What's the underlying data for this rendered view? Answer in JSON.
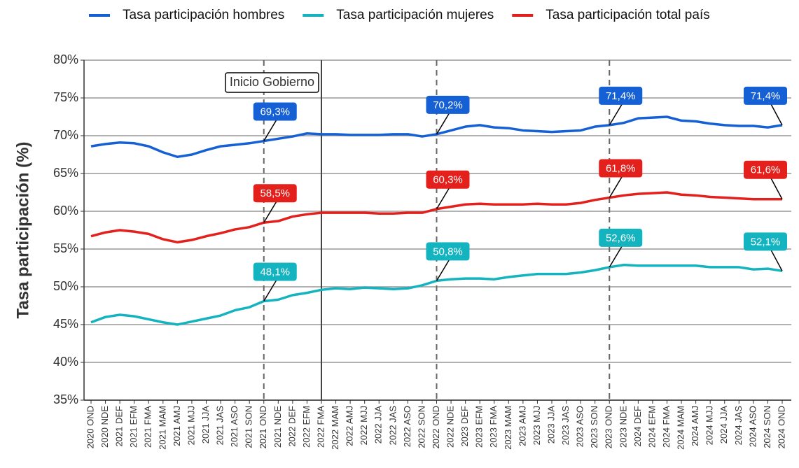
{
  "chart_data": {
    "type": "line",
    "ylabel": "Tasa participación (%)",
    "categories": [
      "2020 OND",
      "2020 NDE",
      "2021 DEF",
      "2021 EFM",
      "2021 FMA",
      "2021 MAM",
      "2021 AMJ",
      "2021 MJJ",
      "2021 JJA",
      "2021 JAS",
      "2021 ASO",
      "2021 SON",
      "2021 OND",
      "2021 NDE",
      "2022 DEF",
      "2022 EFM",
      "2022 FMA",
      "2022 MAM",
      "2022 AMJ",
      "2022 MJJ",
      "2022 JJA",
      "2022 JAS",
      "2022 ASO",
      "2022 SON",
      "2022 OND",
      "2022 NDE",
      "2023 DEF",
      "2023 EFM",
      "2023 FMA",
      "2023 MAM",
      "2023 AMJ",
      "2023 MJJ",
      "2023 JJA",
      "2023 JAS",
      "2023 ASO",
      "2023 SON",
      "2023 OND",
      "2023 NDE",
      "2024 DEF",
      "2024 EFM",
      "2024 FMA",
      "2024 MAM",
      "2024 AMJ",
      "2024 MJJ",
      "2024 JJA",
      "2024 JAS",
      "2024 ASO",
      "2024 SON",
      "2024 OND"
    ],
    "series": [
      {
        "name": "Tasa participación hombres",
        "color": "#1560d4",
        "values": [
          68.6,
          68.9,
          69.1,
          69.0,
          68.6,
          67.8,
          67.2,
          67.5,
          68.1,
          68.6,
          68.8,
          69.0,
          69.3,
          69.6,
          69.9,
          70.3,
          70.2,
          70.2,
          70.1,
          70.1,
          70.1,
          70.2,
          70.2,
          69.9,
          70.2,
          70.7,
          71.2,
          71.4,
          71.1,
          71.0,
          70.7,
          70.6,
          70.5,
          70.6,
          70.7,
          71.2,
          71.4,
          71.7,
          72.3,
          72.4,
          72.5,
          72.0,
          71.9,
          71.6,
          71.4,
          71.3,
          71.3,
          71.1,
          71.4
        ],
        "value_labels": [
          null,
          null,
          null,
          null,
          null,
          null,
          null,
          null,
          null,
          null,
          null,
          null,
          "69,3%",
          null,
          null,
          null,
          null,
          null,
          null,
          null,
          null,
          null,
          null,
          null,
          "70,2%",
          null,
          null,
          null,
          null,
          null,
          null,
          null,
          null,
          null,
          null,
          null,
          "71,4%",
          null,
          null,
          null,
          null,
          null,
          null,
          null,
          null,
          null,
          null,
          null,
          "71,4%"
        ]
      },
      {
        "name": "Tasa participación mujeres",
        "color": "#14b3c0",
        "values": [
          45.3,
          46.0,
          46.3,
          46.1,
          45.7,
          45.3,
          45.0,
          45.4,
          45.8,
          46.2,
          46.9,
          47.3,
          48.1,
          48.3,
          48.9,
          49.2,
          49.6,
          49.8,
          49.7,
          49.9,
          49.8,
          49.7,
          49.8,
          50.2,
          50.8,
          51.0,
          51.1,
          51.1,
          51.0,
          51.3,
          51.5,
          51.7,
          51.7,
          51.7,
          51.9,
          52.2,
          52.6,
          52.9,
          52.8,
          52.8,
          52.8,
          52.8,
          52.8,
          52.6,
          52.6,
          52.6,
          52.3,
          52.4,
          52.1
        ],
        "value_labels": [
          null,
          null,
          null,
          null,
          null,
          null,
          null,
          null,
          null,
          null,
          null,
          null,
          "48,1%",
          null,
          null,
          null,
          null,
          null,
          null,
          null,
          null,
          null,
          null,
          null,
          "50,8%",
          null,
          null,
          null,
          null,
          null,
          null,
          null,
          null,
          null,
          null,
          null,
          "52,6%",
          null,
          null,
          null,
          null,
          null,
          null,
          null,
          null,
          null,
          null,
          null,
          "52,1%"
        ]
      },
      {
        "name": "Tasa participación total país",
        "color": "#e3201b",
        "values": [
          56.7,
          57.2,
          57.5,
          57.3,
          57.0,
          56.3,
          55.9,
          56.2,
          56.7,
          57.1,
          57.6,
          57.9,
          58.5,
          58.7,
          59.3,
          59.6,
          59.8,
          59.8,
          59.8,
          59.8,
          59.7,
          59.7,
          59.8,
          59.8,
          60.3,
          60.6,
          60.9,
          61.0,
          60.9,
          60.9,
          60.9,
          61.0,
          60.9,
          60.9,
          61.1,
          61.5,
          61.8,
          62.1,
          62.3,
          62.4,
          62.5,
          62.2,
          62.1,
          61.9,
          61.8,
          61.7,
          61.6,
          61.6,
          61.6
        ],
        "value_labels": [
          null,
          null,
          null,
          null,
          null,
          null,
          null,
          null,
          null,
          null,
          null,
          null,
          "58,5%",
          null,
          null,
          null,
          null,
          null,
          null,
          null,
          null,
          null,
          null,
          null,
          "60,3%",
          null,
          null,
          null,
          null,
          null,
          null,
          null,
          null,
          null,
          null,
          null,
          "61,8%",
          null,
          null,
          null,
          null,
          null,
          null,
          null,
          null,
          null,
          null,
          null,
          "61,6%"
        ]
      }
    ],
    "ylim": [
      35,
      80
    ],
    "yticks": [
      {
        "value": 35,
        "label": "35%"
      },
      {
        "value": 40,
        "label": "40%"
      },
      {
        "value": 45,
        "label": "45%"
      },
      {
        "value": 50,
        "label": "50%"
      },
      {
        "value": 55,
        "label": "55%"
      },
      {
        "value": 60,
        "label": "60%"
      },
      {
        "value": 65,
        "label": "65%"
      },
      {
        "value": 70,
        "label": "70%"
      },
      {
        "value": 75,
        "label": "75%"
      },
      {
        "value": 80,
        "label": "80%"
      }
    ],
    "grid": true,
    "legend": "top",
    "dashed_lines": [
      "2021 OND",
      "2022 OND",
      "2023 OND"
    ],
    "annotation": {
      "text": "Inicio Gobierno",
      "category": "2022 FMA"
    }
  }
}
